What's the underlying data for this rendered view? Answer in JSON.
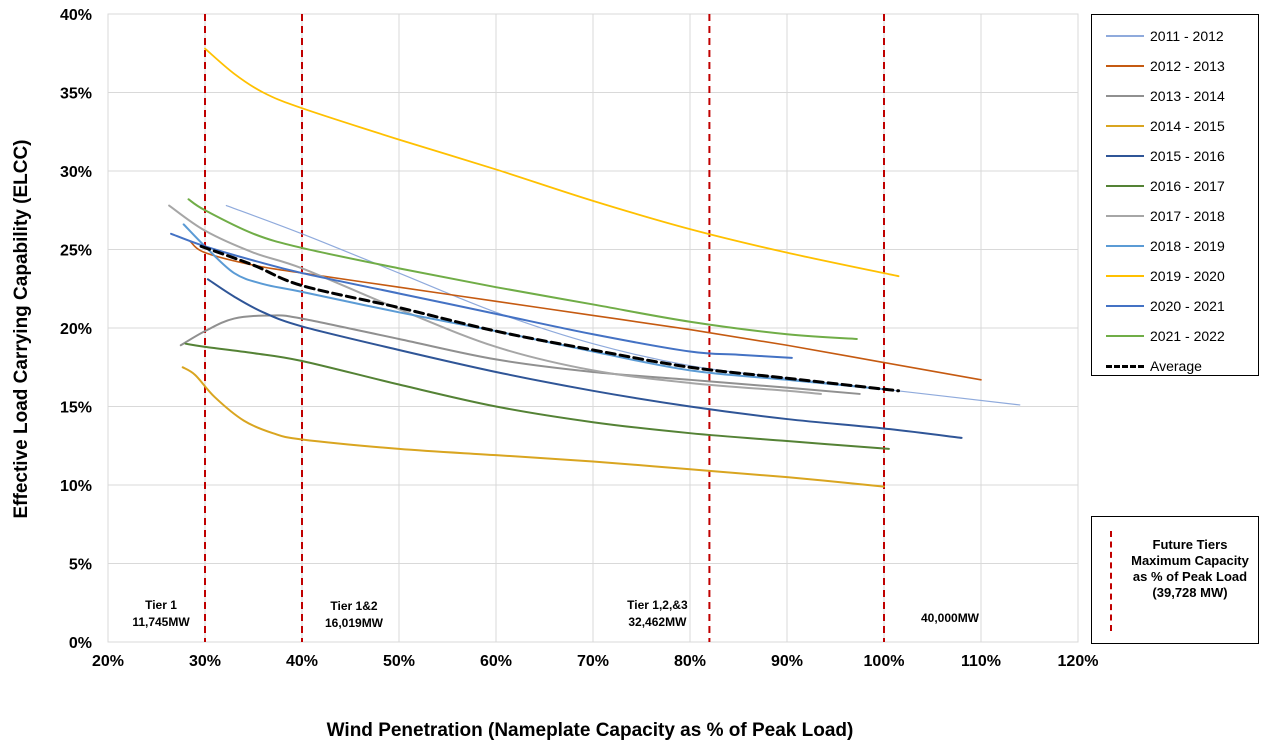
{
  "chart_data": {
    "type": "line",
    "xlabel": "Wind Penetration (Nameplate Capacity as % of Peak Load)",
    "ylabel": "Effective Load Carrying Capability (ELCC)",
    "xlim": [
      20,
      120
    ],
    "ylim": [
      0,
      40
    ],
    "xticks": [
      "20%",
      "30%",
      "40%",
      "50%",
      "60%",
      "70%",
      "80%",
      "90%",
      "100%",
      "110%",
      "120%"
    ],
    "yticks": [
      "0%",
      "5%",
      "10%",
      "15%",
      "20%",
      "25%",
      "30%",
      "35%",
      "40%"
    ],
    "grid": true,
    "legend_position": "right",
    "series": [
      {
        "name": "2011 - 2012",
        "color": "#8faadc",
        "width": 1.2,
        "points": [
          [
            32.2,
            27.8
          ],
          [
            40,
            26.0
          ],
          [
            50,
            23.5
          ],
          [
            60,
            21.0
          ],
          [
            70,
            19.0
          ],
          [
            80,
            17.6
          ],
          [
            90,
            16.8
          ],
          [
            100,
            16.1
          ],
          [
            114,
            15.1
          ]
        ]
      },
      {
        "name": "2012 - 2013",
        "color": "#c55a11",
        "width": 1.6,
        "points": [
          [
            28.5,
            25.5
          ],
          [
            30,
            24.8
          ],
          [
            35,
            24.0
          ],
          [
            40,
            23.5
          ],
          [
            50,
            22.6
          ],
          [
            60,
            21.7
          ],
          [
            70,
            20.8
          ],
          [
            80,
            19.9
          ],
          [
            90,
            18.9
          ],
          [
            100,
            17.8
          ],
          [
            110,
            16.7
          ]
        ]
      },
      {
        "name": "2013 - 2014",
        "color": "#909090",
        "width": 2,
        "points": [
          [
            27.5,
            18.9
          ],
          [
            30,
            19.8
          ],
          [
            33,
            20.6
          ],
          [
            37,
            20.8
          ],
          [
            40,
            20.6
          ],
          [
            50,
            19.3
          ],
          [
            60,
            18.0
          ],
          [
            70,
            17.2
          ],
          [
            80,
            16.7
          ],
          [
            90,
            16.2
          ],
          [
            97.5,
            15.8
          ]
        ]
      },
      {
        "name": "2014 - 2015",
        "color": "#d9a520",
        "width": 2,
        "points": [
          [
            27.7,
            17.5
          ],
          [
            29,
            17.0
          ],
          [
            31,
            15.6
          ],
          [
            34,
            14.1
          ],
          [
            37,
            13.3
          ],
          [
            40,
            12.9
          ],
          [
            50,
            12.3
          ],
          [
            60,
            11.9
          ],
          [
            70,
            11.5
          ],
          [
            80,
            11.0
          ],
          [
            90,
            10.5
          ],
          [
            100,
            9.9
          ]
        ]
      },
      {
        "name": "2015 - 2016",
        "color": "#2f5597",
        "width": 2,
        "points": [
          [
            30.3,
            23.1
          ],
          [
            33,
            22.0
          ],
          [
            36,
            21.0
          ],
          [
            40,
            20.1
          ],
          [
            50,
            18.6
          ],
          [
            60,
            17.2
          ],
          [
            70,
            16.0
          ],
          [
            80,
            15.0
          ],
          [
            90,
            14.2
          ],
          [
            100,
            13.6
          ],
          [
            108,
            13.0
          ]
        ]
      },
      {
        "name": "2016 - 2017",
        "color": "#548235",
        "width": 2,
        "points": [
          [
            28.0,
            19.0
          ],
          [
            30,
            18.8
          ],
          [
            35,
            18.4
          ],
          [
            40,
            17.9
          ],
          [
            50,
            16.4
          ],
          [
            60,
            15.0
          ],
          [
            70,
            14.0
          ],
          [
            80,
            13.3
          ],
          [
            90,
            12.8
          ],
          [
            100.5,
            12.3
          ]
        ]
      },
      {
        "name": "2017 - 2018",
        "color": "#a6a6a6",
        "width": 2,
        "points": [
          [
            26.3,
            27.8
          ],
          [
            30,
            26.2
          ],
          [
            35,
            24.8
          ],
          [
            40,
            23.8
          ],
          [
            50,
            21.2
          ],
          [
            60,
            18.8
          ],
          [
            70,
            17.3
          ],
          [
            80,
            16.5
          ],
          [
            90,
            16.0
          ],
          [
            93.5,
            15.8
          ]
        ]
      },
      {
        "name": "2018 - 2019",
        "color": "#5b9bd5",
        "width": 2,
        "points": [
          [
            27.8,
            26.6
          ],
          [
            30,
            25.2
          ],
          [
            33,
            23.5
          ],
          [
            36,
            22.8
          ],
          [
            40,
            22.3
          ],
          [
            50,
            21.0
          ],
          [
            60,
            19.8
          ],
          [
            70,
            18.5
          ],
          [
            80,
            17.3
          ],
          [
            90,
            16.7
          ],
          [
            100,
            16.1
          ]
        ]
      },
      {
        "name": "2019 - 2020",
        "color": "#ffc000",
        "width": 1.8,
        "points": [
          [
            30,
            37.8
          ],
          [
            33,
            36.2
          ],
          [
            36,
            35.0
          ],
          [
            40,
            34.0
          ],
          [
            50,
            32.0
          ],
          [
            60,
            30.1
          ],
          [
            70,
            28.1
          ],
          [
            80,
            26.3
          ],
          [
            90,
            24.8
          ],
          [
            101.5,
            23.3
          ]
        ]
      },
      {
        "name": "2020 - 2021",
        "color": "#4472c4",
        "width": 2,
        "points": [
          [
            26.5,
            26.0
          ],
          [
            30,
            25.2
          ],
          [
            35,
            24.3
          ],
          [
            40,
            23.5
          ],
          [
            50,
            22.2
          ],
          [
            60,
            20.9
          ],
          [
            70,
            19.6
          ],
          [
            80,
            18.5
          ],
          [
            85,
            18.3
          ],
          [
            90.5,
            18.1
          ]
        ]
      },
      {
        "name": "2021 - 2022",
        "color": "#70ad47",
        "width": 2,
        "points": [
          [
            28.3,
            28.2
          ],
          [
            30,
            27.5
          ],
          [
            35,
            26.0
          ],
          [
            40,
            25.1
          ],
          [
            50,
            23.8
          ],
          [
            60,
            22.6
          ],
          [
            70,
            21.5
          ],
          [
            80,
            20.4
          ],
          [
            90,
            19.6
          ],
          [
            97.2,
            19.3
          ]
        ]
      },
      {
        "name": "Average",
        "color": "#000000",
        "width": 3,
        "dash": "9,5",
        "points": [
          [
            29.6,
            25.2
          ],
          [
            35,
            24.0
          ],
          [
            40,
            22.7
          ],
          [
            50,
            21.3
          ],
          [
            60,
            19.8
          ],
          [
            70,
            18.6
          ],
          [
            80,
            17.5
          ],
          [
            90,
            16.8
          ],
          [
            101.5,
            16.0
          ]
        ]
      }
    ],
    "tier_lines": [
      {
        "x": 30,
        "label_lines": [
          "Tier 1",
          "11,745MW"
        ]
      },
      {
        "x": 40,
        "label_lines": [
          "Tier 1&2",
          "16,019MW"
        ]
      },
      {
        "x": 82,
        "label_lines": [
          "Tier 1,2,&3",
          "32,462MW"
        ]
      },
      {
        "x": 100,
        "label_lines": [
          "40,000MW"
        ]
      }
    ],
    "tier_line_color": "#c00000"
  },
  "tier_legend": {
    "lines": [
      "Future Tiers",
      "Maximum Capacity",
      "as % of Peak Load",
      "(39,728 MW)"
    ]
  }
}
